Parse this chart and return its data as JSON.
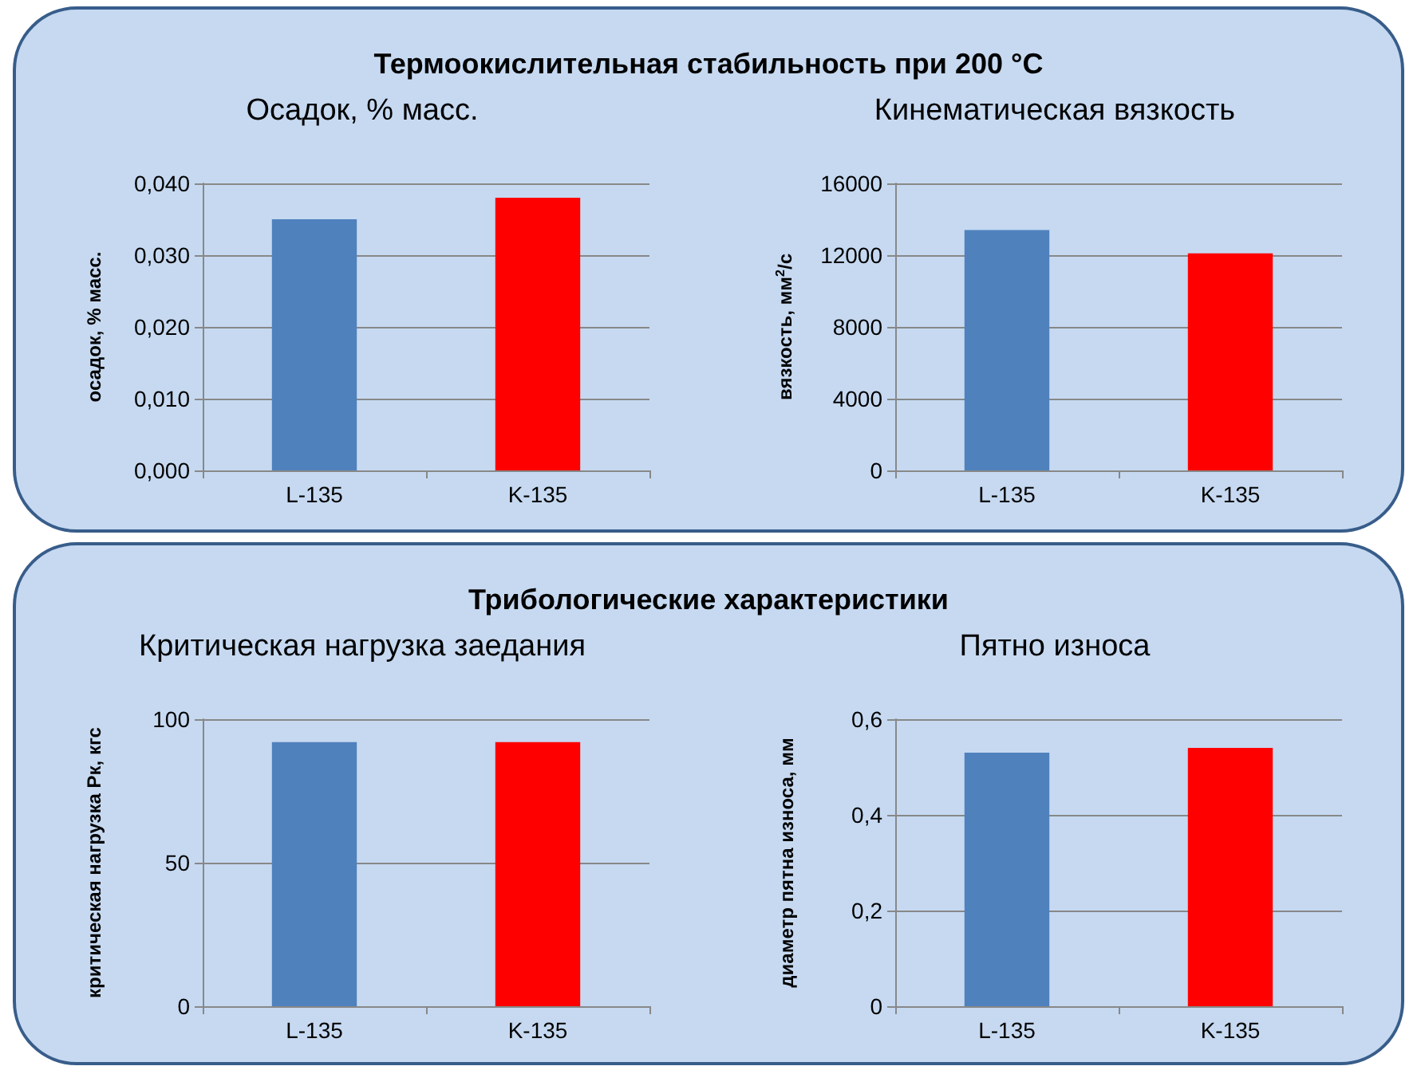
{
  "chart_data": [
    {
      "type": "bar",
      "title": "Осадок, % масс.",
      "ylabel": "осадок, % масс.",
      "annotations": [
        "Термоокислительная стабильность при 200 °C"
      ],
      "categories": [
        "L-135",
        "K-135"
      ],
      "values": [
        0.035,
        0.038
      ],
      "colors": [
        "#4f81bd",
        "#ff0000"
      ],
      "ylim": [
        0,
        0.04
      ],
      "yticks": [
        {
          "value": 0,
          "label": "0,000"
        },
        {
          "value": 0.01,
          "label": "0,010"
        },
        {
          "value": 0.02,
          "label": "0,020"
        },
        {
          "value": 0.03,
          "label": "0,030"
        },
        {
          "value": 0.04,
          "label": "0,040"
        }
      ],
      "grid": "y"
    },
    {
      "type": "bar",
      "title": "Кинематическая вязкость",
      "ylabel": "вязкость, мм$^{2}$/с",
      "categories": [
        "L-135",
        "K-135"
      ],
      "values": [
        13400,
        12100
      ],
      "colors": [
        "#4f81bd",
        "#ff0000"
      ],
      "ylim": [
        0,
        16000
      ],
      "yticks": [
        0,
        4000,
        8000,
        12000,
        16000
      ],
      "grid": "y"
    },
    {
      "type": "bar",
      "title": "Критическая нагрузка заедания",
      "ylabel": "критическая нагрузка Рк, кгс",
      "annotations": [
        "Трибологические характеристики"
      ],
      "categories": [
        "L-135",
        "K-135"
      ],
      "values": [
        92,
        92
      ],
      "colors": [
        "#4f81bd",
        "#ff0000"
      ],
      "ylim": [
        0,
        100
      ],
      "yticks": [
        0,
        50,
        100
      ],
      "grid": "y"
    },
    {
      "type": "bar",
      "title": "Пятно износа",
      "ylabel": "диаметр пятна износа, мм",
      "categories": [
        "L-135",
        "K-135"
      ],
      "values": [
        0.53,
        0.54
      ],
      "colors": [
        "#4f81bd",
        "#ff0000"
      ],
      "ylim": [
        0,
        0.6
      ],
      "yticks": [
        {
          "value": 0,
          "label": "0"
        },
        {
          "value": 0.2,
          "label": "0,2"
        },
        {
          "value": 0.4,
          "label": "0,4"
        },
        {
          "value": 0.6,
          "label": "0,6"
        }
      ],
      "grid": "y"
    }
  ]
}
